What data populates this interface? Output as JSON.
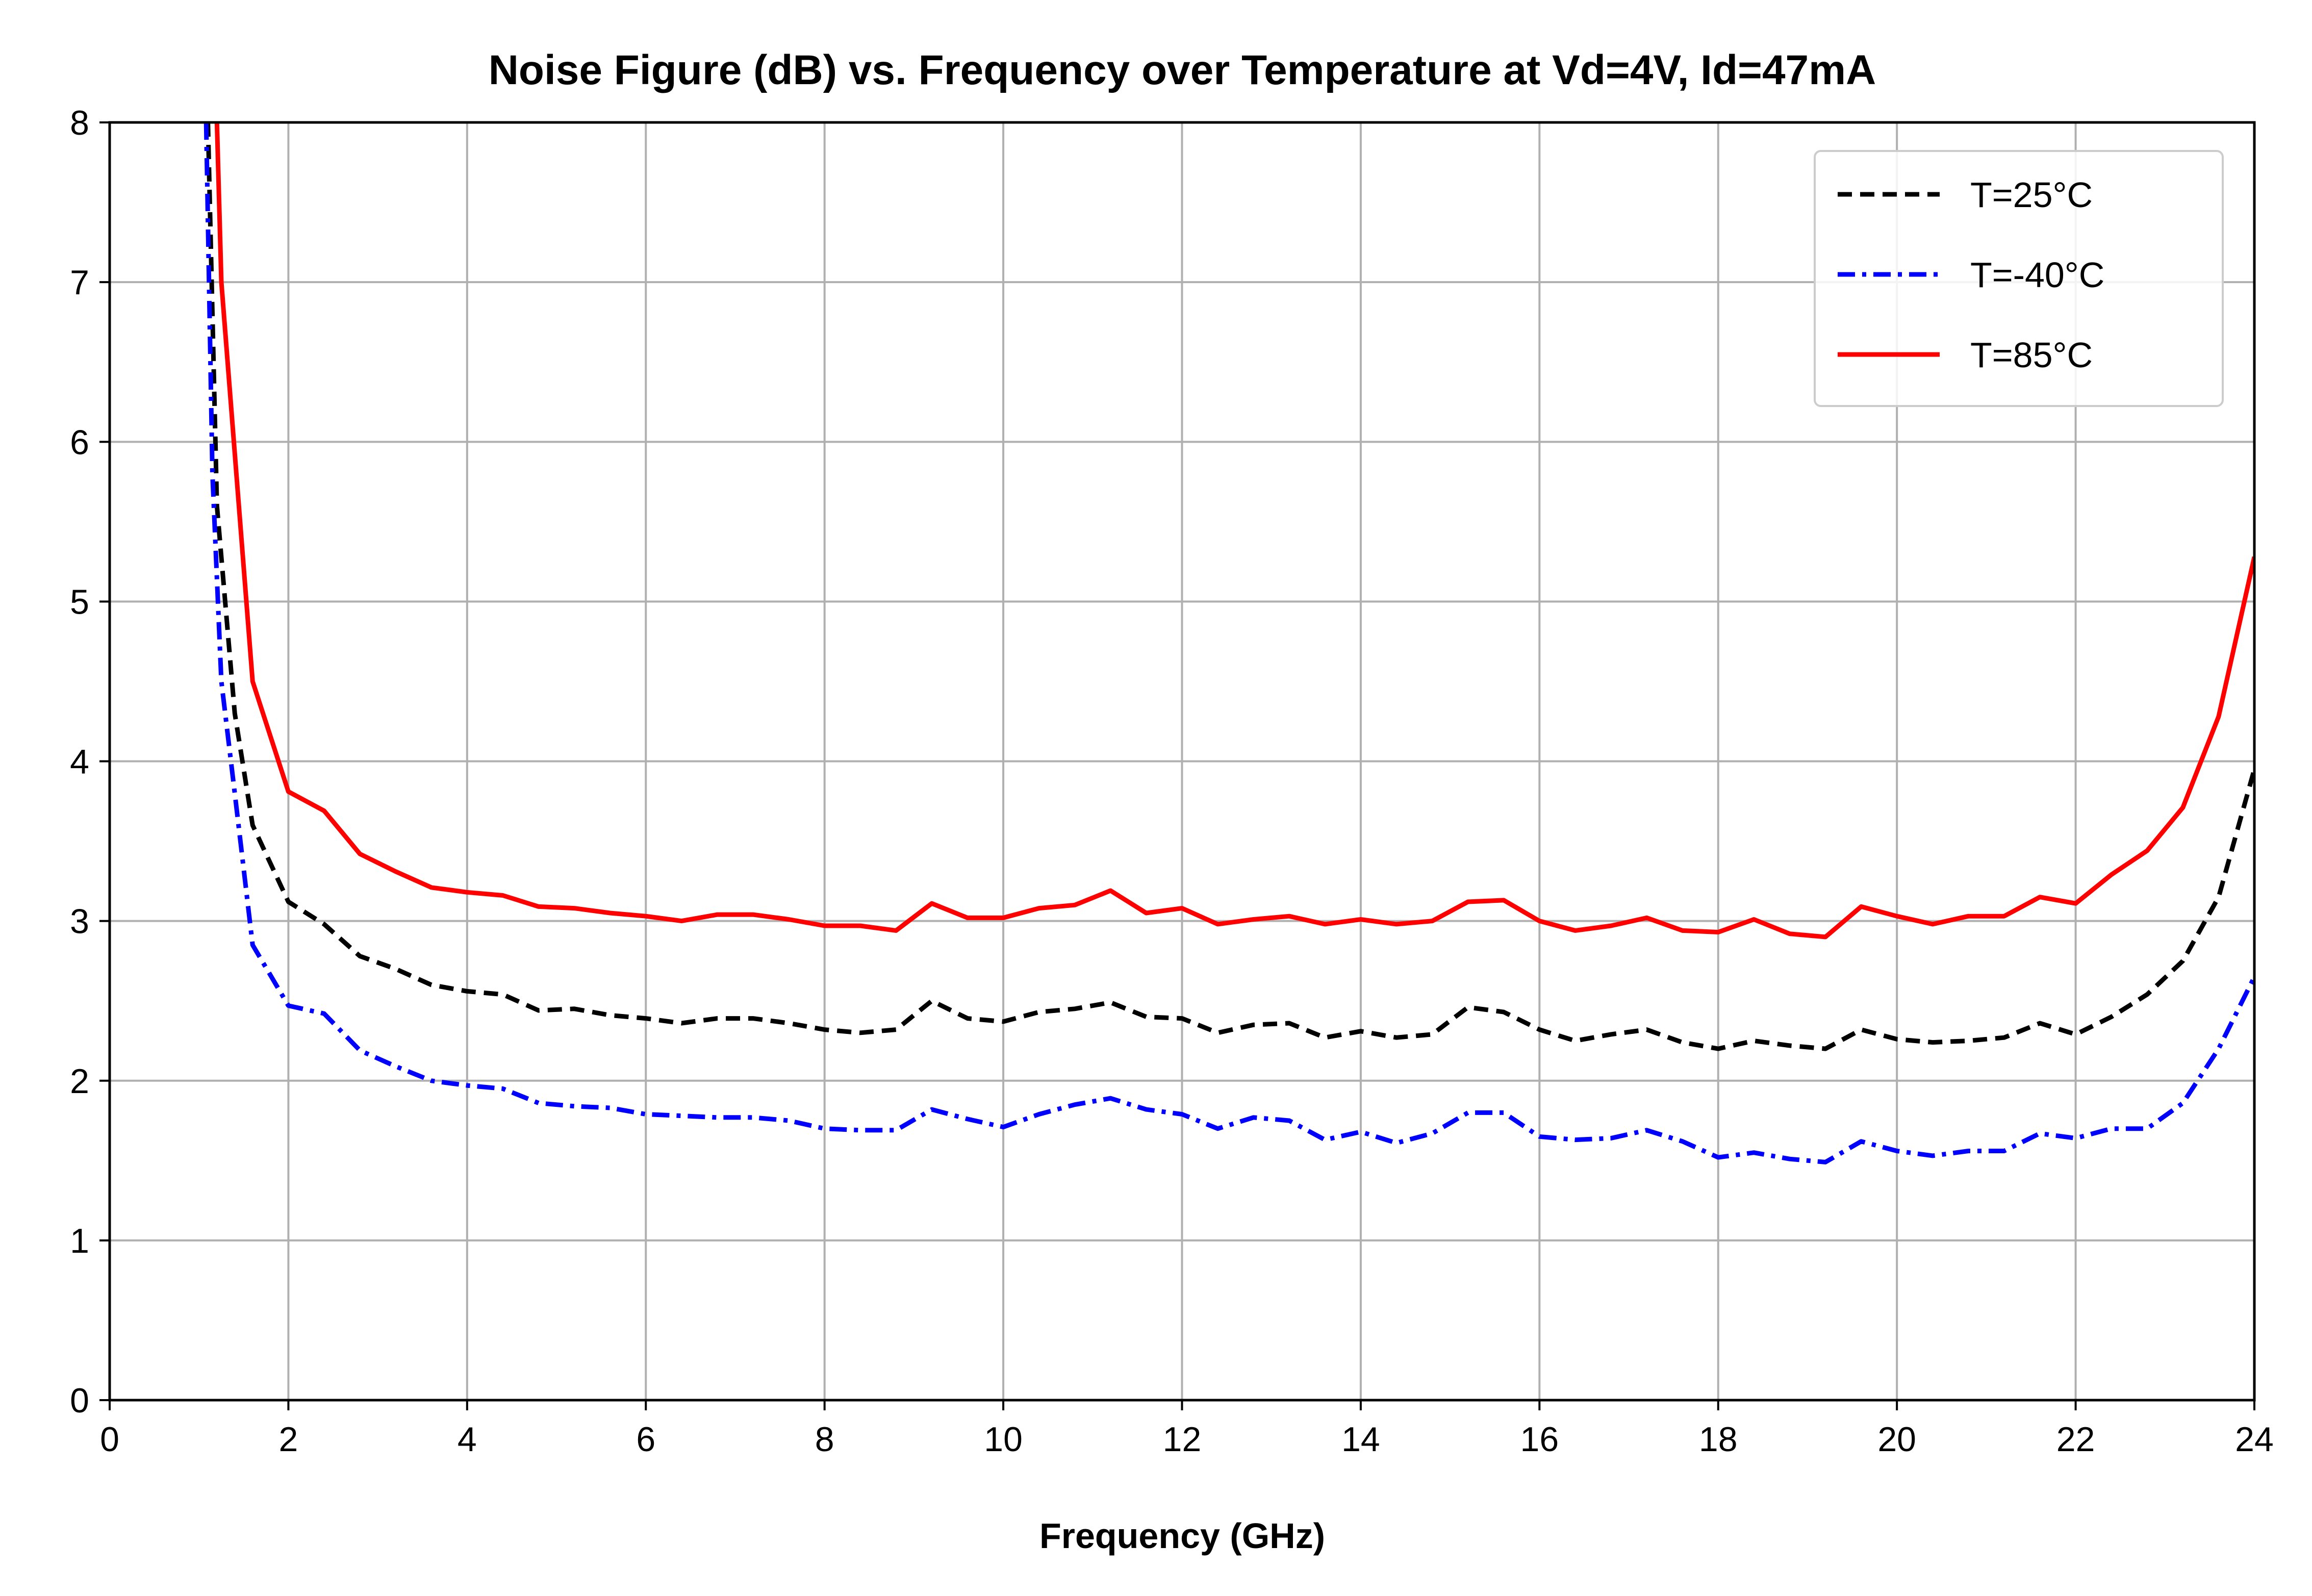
{
  "chart_data": {
    "type": "line",
    "title": "Noise Figure (dB) vs. Frequency over Temperature at Vd=4V, Id=47mA",
    "xlabel": "Frequency (GHz)",
    "ylabel": "",
    "xlim": [
      0,
      24
    ],
    "ylim": [
      0,
      8
    ],
    "xticks": [
      "0",
      "2",
      "4",
      "6",
      "8",
      "10",
      "12",
      "14",
      "16",
      "18",
      "20",
      "22",
      "24"
    ],
    "yticks": [
      "0",
      "1",
      "2",
      "3",
      "4",
      "5",
      "6",
      "7",
      "8"
    ],
    "grid": true,
    "legend_position": "top-right",
    "series": [
      {
        "name": "T=25°C",
        "color": "#000000",
        "style": "dashed",
        "x": [
          1.1,
          1.2,
          1.4,
          1.6,
          2.0,
          2.4,
          2.8,
          3.2,
          3.6,
          4.0,
          4.4,
          4.8,
          5.2,
          5.6,
          6.0,
          6.4,
          6.8,
          7.2,
          7.6,
          8.0,
          8.4,
          8.8,
          9.2,
          9.6,
          10.0,
          10.4,
          10.8,
          11.2,
          11.6,
          12.0,
          12.4,
          12.8,
          13.2,
          13.6,
          14.0,
          14.4,
          14.8,
          15.2,
          15.6,
          16.0,
          16.4,
          16.8,
          17.2,
          17.6,
          18.0,
          18.4,
          18.8,
          19.2,
          19.6,
          20.0,
          20.4,
          20.8,
          21.2,
          21.6,
          22.0,
          22.4,
          22.8,
          23.2,
          23.6,
          24.0
        ],
        "values": [
          8.0,
          5.6,
          4.3,
          3.6,
          3.12,
          2.98,
          2.78,
          2.7,
          2.6,
          2.56,
          2.54,
          2.44,
          2.45,
          2.41,
          2.39,
          2.36,
          2.39,
          2.39,
          2.36,
          2.32,
          2.3,
          2.32,
          2.5,
          2.39,
          2.37,
          2.43,
          2.45,
          2.49,
          2.4,
          2.39,
          2.3,
          2.35,
          2.36,
          2.27,
          2.31,
          2.27,
          2.29,
          2.46,
          2.43,
          2.32,
          2.25,
          2.29,
          2.32,
          2.24,
          2.2,
          2.25,
          2.22,
          2.2,
          2.32,
          2.26,
          2.24,
          2.25,
          2.27,
          2.36,
          2.29,
          2.4,
          2.54,
          2.75,
          3.15,
          3.95
        ]
      },
      {
        "name": "T=-40°C",
        "color": "#0000ff",
        "style": "dashdot",
        "x": [
          1.08,
          1.15,
          1.25,
          1.4,
          1.6,
          2.0,
          2.4,
          2.8,
          3.2,
          3.6,
          4.0,
          4.4,
          4.8,
          5.2,
          5.6,
          6.0,
          6.4,
          6.8,
          7.2,
          7.6,
          8.0,
          8.4,
          8.8,
          9.2,
          9.6,
          10.0,
          10.4,
          10.8,
          11.2,
          11.6,
          12.0,
          12.4,
          12.8,
          13.2,
          13.6,
          14.0,
          14.4,
          14.8,
          15.2,
          15.6,
          16.0,
          16.4,
          16.8,
          17.2,
          17.6,
          18.0,
          18.4,
          18.8,
          19.2,
          19.6,
          20.0,
          20.4,
          20.8,
          21.2,
          21.6,
          22.0,
          22.4,
          22.8,
          23.2,
          23.6,
          24.0
        ],
        "values": [
          8.0,
          5.8,
          4.5,
          3.8,
          2.85,
          2.47,
          2.42,
          2.19,
          2.09,
          2.0,
          1.97,
          1.95,
          1.86,
          1.84,
          1.83,
          1.79,
          1.78,
          1.77,
          1.77,
          1.75,
          1.7,
          1.69,
          1.69,
          1.82,
          1.76,
          1.71,
          1.79,
          1.85,
          1.89,
          1.82,
          1.79,
          1.7,
          1.77,
          1.75,
          1.63,
          1.68,
          1.61,
          1.67,
          1.8,
          1.8,
          1.65,
          1.63,
          1.64,
          1.69,
          1.62,
          1.52,
          1.55,
          1.51,
          1.49,
          1.62,
          1.56,
          1.53,
          1.56,
          1.56,
          1.67,
          1.64,
          1.7,
          1.7,
          1.86,
          2.2,
          2.65
        ]
      },
      {
        "name": "T=85°C",
        "color": "#ff0000",
        "style": "solid",
        "x": [
          1.2,
          1.25,
          1.6,
          2.0,
          2.4,
          2.8,
          3.2,
          3.6,
          4.0,
          4.4,
          4.8,
          5.2,
          5.6,
          6.0,
          6.4,
          6.8,
          7.2,
          7.6,
          8.0,
          8.4,
          8.8,
          9.2,
          9.6,
          10.0,
          10.4,
          10.8,
          11.2,
          11.6,
          12.0,
          12.4,
          12.8,
          13.2,
          13.6,
          14.0,
          14.4,
          14.8,
          15.2,
          15.6,
          16.0,
          16.4,
          16.8,
          17.2,
          17.6,
          18.0,
          18.4,
          18.8,
          19.2,
          19.6,
          20.0,
          20.4,
          20.8,
          21.2,
          21.6,
          22.0,
          22.4,
          22.8,
          23.2,
          23.6,
          24.0
        ],
        "values": [
          8.0,
          7.0,
          4.5,
          3.81,
          3.69,
          3.42,
          3.31,
          3.21,
          3.18,
          3.16,
          3.09,
          3.08,
          3.05,
          3.03,
          3.0,
          3.04,
          3.04,
          3.01,
          2.97,
          2.97,
          2.94,
          3.11,
          3.02,
          3.02,
          3.08,
          3.1,
          3.19,
          3.05,
          3.08,
          2.98,
          3.01,
          3.03,
          2.98,
          3.01,
          2.98,
          3.0,
          3.12,
          3.13,
          3.0,
          2.94,
          2.97,
          3.02,
          2.94,
          2.93,
          3.01,
          2.92,
          2.9,
          3.09,
          3.03,
          2.98,
          3.03,
          3.03,
          3.15,
          3.11,
          3.29,
          3.44,
          3.71,
          4.28,
          5.28
        ]
      }
    ]
  }
}
